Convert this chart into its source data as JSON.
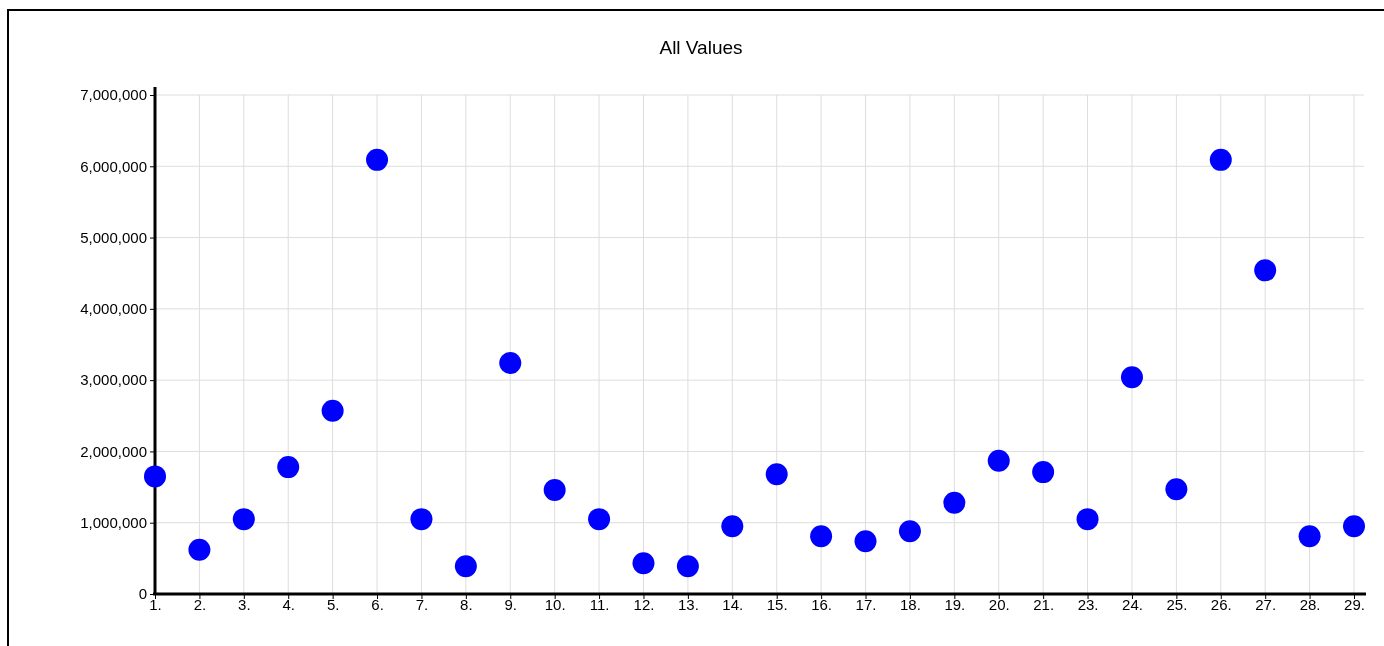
{
  "chart_data": {
    "type": "scatter",
    "title": "All Values",
    "categories": [
      "1.",
      "2.",
      "3.",
      "4.",
      "5.",
      "6.",
      "7.",
      "8.",
      "9.",
      "10.",
      "11.",
      "12.",
      "13.",
      "14.",
      "15.",
      "16.",
      "17.",
      "18.",
      "19.",
      "20.",
      "21.",
      "23.",
      "24.",
      "25.",
      "26.",
      "27.",
      "28.",
      "29."
    ],
    "series": [
      {
        "color": "#0000ff",
        "values": [
          1650000,
          620000,
          1050000,
          1780000,
          2570000,
          6090000,
          1050000,
          390000,
          3240000,
          1460000,
          1050000,
          430000,
          390000,
          950000,
          1680000,
          810000,
          740000,
          880000,
          1280000,
          1870000,
          1710000,
          1050000,
          3040000,
          1470000,
          6090000,
          4540000,
          810000,
          950000
        ]
      }
    ],
    "ylim": [
      0,
      7000000
    ],
    "yticks": [
      {
        "value": 0,
        "label": "0"
      },
      {
        "value": 1000000,
        "label": "1,000,000"
      },
      {
        "value": 2000000,
        "label": "2,000,000"
      },
      {
        "value": 3000000,
        "label": "3,000,000"
      },
      {
        "value": 4000000,
        "label": "4,000,000"
      },
      {
        "value": 5000000,
        "label": "5,000,000"
      },
      {
        "value": 6000000,
        "label": "6,000,000"
      },
      {
        "value": 7000000,
        "label": "7,000,000"
      }
    ],
    "grid": true,
    "marker": "circle"
  }
}
